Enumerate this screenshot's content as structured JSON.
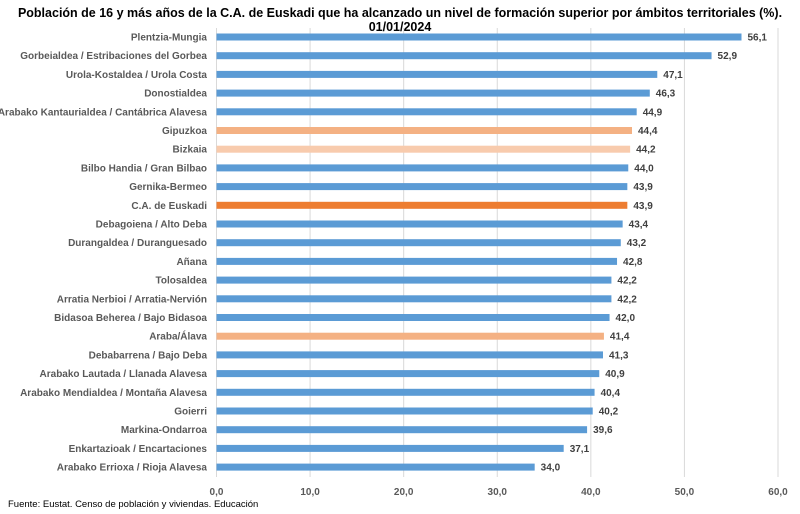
{
  "chart_data": {
    "type": "bar",
    "orientation": "horizontal",
    "title": "Población de 16 y más años de la C.A. de Euskadi que ha alcanzado un nivel de formación superior por ámbitos territoriales (%). 01/01/2024",
    "source": "Fuente: Eustat. Censo de población y viviendas. Educación",
    "categories": [
      "Plentzia-Mungia",
      "Gorbeialdea / Estribaciones del Gorbea",
      "Urola-Kostaldea  /  Urola Costa",
      "Donostialdea",
      "Arabako Kantaurialdea / Cantábrica Alavesa",
      "Gipuzkoa",
      "Bizkaia",
      "Bilbo Handia  /  Gran Bilbao",
      "Gernika-Bermeo",
      "C.A. de Euskadi",
      "Debagoiena  /  Alto Deba",
      "Durangaldea  /  Duranguesado",
      "Añana",
      "Tolosaldea",
      "Arratia Nerbioi  /  Arratia-Nervión",
      "Bidasoa Beherea  /  Bajo Bidasoa",
      "Araba/Álava",
      "Debabarrena / Bajo Deba",
      "Arabako Lautada  /  Llanada Alavesa",
      "Arabako Mendialdea  /  Montaña Alavesa",
      "Goierri",
      "Markina-Ondarroa",
      "Enkartazioak  /  Encartaciones",
      "Arabako Errioxa / Rioja Alavesa"
    ],
    "values": [
      56.1,
      52.9,
      47.1,
      46.3,
      44.9,
      44.4,
      44.2,
      44.0,
      43.9,
      43.9,
      43.4,
      43.2,
      42.8,
      42.2,
      42.2,
      42.0,
      41.4,
      41.3,
      40.9,
      40.4,
      40.2,
      39.6,
      37.1,
      34.0
    ],
    "value_labels": [
      "56,1",
      "52,9",
      "47,1",
      "46,3",
      "44,9",
      "44,4",
      "44,2",
      "44,0",
      "43,9",
      "43,9",
      "43,4",
      "43,2",
      "42,8",
      "42,2",
      "42,2",
      "42,0",
      "41,4",
      "41,3",
      "40,9",
      "40,4",
      "40,2",
      "39,6",
      "37,1",
      "34,0"
    ],
    "colors": [
      "#5b9bd5",
      "#5b9bd5",
      "#5b9bd5",
      "#5b9bd5",
      "#5b9bd5",
      "#f4b183",
      "#f8cbad",
      "#5b9bd5",
      "#5b9bd5",
      "#ed7d31",
      "#5b9bd5",
      "#5b9bd5",
      "#5b9bd5",
      "#5b9bd5",
      "#5b9bd5",
      "#5b9bd5",
      "#f4b183",
      "#5b9bd5",
      "#5b9bd5",
      "#5b9bd5",
      "#5b9bd5",
      "#5b9bd5",
      "#5b9bd5",
      "#5b9bd5"
    ],
    "xlim": [
      0,
      60
    ],
    "xticks": [
      0,
      10,
      20,
      30,
      40,
      50,
      60
    ],
    "xtick_labels": [
      "0,0",
      "10,0",
      "20,0",
      "30,0",
      "40,0",
      "50,0",
      "60,0"
    ],
    "grid": "vertical",
    "legend": "none"
  }
}
